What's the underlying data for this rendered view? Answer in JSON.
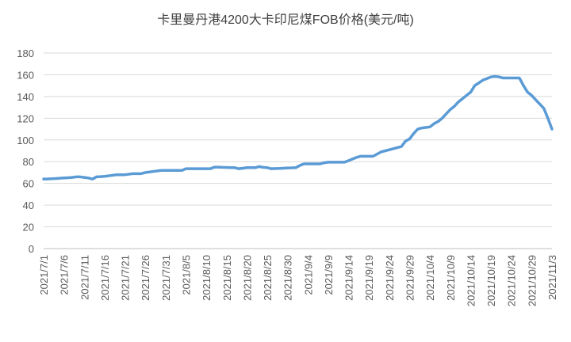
{
  "chart_data": {
    "type": "line",
    "title": "卡里曼丹港4200大卡印尼煤FOB价格(美元/吨)",
    "categories": [
      "2021/7/1",
      null,
      null,
      null,
      null,
      "2021/7/6",
      null,
      null,
      null,
      null,
      "2021/7/11",
      null,
      null,
      null,
      null,
      "2021/7/16",
      null,
      null,
      null,
      null,
      "2021/7/21",
      null,
      null,
      null,
      null,
      "2021/7/26",
      null,
      null,
      null,
      null,
      "2021/7/31",
      null,
      null,
      null,
      null,
      "2021/8/5",
      null,
      null,
      null,
      null,
      "2021/8/10",
      null,
      null,
      null,
      null,
      "2021/8/15",
      null,
      null,
      null,
      null,
      "2021/8/20",
      null,
      null,
      null,
      null,
      "2021/8/25",
      null,
      null,
      null,
      null,
      "2021/8/30",
      null,
      null,
      null,
      null,
      "2021/9/4",
      null,
      null,
      null,
      null,
      "2021/9/9",
      null,
      null,
      null,
      null,
      "2021/9/14",
      null,
      null,
      null,
      null,
      "2021/9/19",
      null,
      null,
      null,
      null,
      "2021/9/24",
      null,
      null,
      null,
      null,
      "2021/9/29",
      null,
      null,
      null,
      null,
      "2021/10/4",
      null,
      null,
      null,
      null,
      "2021/10/9",
      null,
      null,
      null,
      null,
      "2021/10/14",
      null,
      null,
      null,
      null,
      "2021/10/19",
      null,
      null,
      null,
      null,
      "2021/10/24",
      null,
      null,
      null,
      null,
      "2021/10/29",
      null,
      null,
      null,
      null,
      "2021/11/3"
    ],
    "values": [
      64,
      64,
      64.3,
      64.5,
      64.8,
      65,
      65.2,
      65.5,
      66,
      66,
      65.5,
      65,
      64,
      66,
      66.2,
      66.5,
      67,
      67.5,
      68,
      68,
      68,
      68.5,
      69,
      69,
      69,
      70,
      70.5,
      71,
      71.5,
      72,
      72,
      72,
      72,
      72,
      72,
      73.5,
      73.5,
      73.5,
      73.5,
      73.5,
      73.5,
      73.5,
      75,
      75,
      74.8,
      74.7,
      74.5,
      74.5,
      73.5,
      74,
      74.5,
      74.5,
      74.5,
      75.5,
      74.8,
      74.5,
      73.5,
      73.7,
      73.8,
      74,
      74.2,
      74.3,
      74.5,
      76.5,
      78,
      78,
      78,
      78,
      78,
      79,
      79.5,
      79.5,
      79.5,
      79.5,
      79.5,
      81,
      82.5,
      84,
      85,
      85,
      85,
      85,
      87,
      89,
      90,
      91,
      92,
      93,
      94,
      99,
      101,
      106,
      110,
      111,
      111.5,
      112,
      115,
      117,
      120,
      124,
      128,
      131,
      135,
      138,
      141,
      144,
      150,
      152.5,
      155,
      156.5,
      158,
      158.5,
      158,
      157,
      157,
      157,
      157,
      157,
      150,
      144,
      141,
      137,
      133,
      129,
      120,
      110
    ],
    "color": "#5b9bd5",
    "ylim": [
      0,
      180
    ],
    "yticks": [
      0,
      20,
      40,
      60,
      80,
      100,
      120,
      140,
      160,
      180
    ],
    "grid": true
  }
}
